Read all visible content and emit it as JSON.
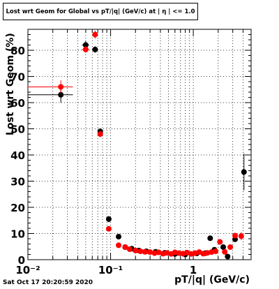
{
  "chart_data": {
    "type": "scatter",
    "title": "Lost wrt Geom for Global vs pT/|q| (GeV/c) at | η | <= 1.0",
    "xlabel": "pT/|q| (GeV/c)",
    "ylabel": "Lost wrt Geom (%)",
    "xscale": "log",
    "xlim": [
      0.01,
      5
    ],
    "ylim": [
      0,
      88
    ],
    "xticks": [
      {
        "v": 0.01,
        "label": "10⁻²"
      },
      {
        "v": 0.1,
        "label": "10⁻¹"
      },
      {
        "v": 1,
        "label": "1"
      }
    ],
    "yticks": [
      0,
      10,
      20,
      30,
      40,
      50,
      60,
      70,
      80
    ],
    "grid": true,
    "series": [
      {
        "color": "#000000",
        "points": [
          {
            "x": 0.025,
            "y": 63.0,
            "xerr": [
              0.015,
              0.01
            ],
            "yerr": 3
          },
          {
            "x": 0.05,
            "y": 82.0,
            "xerr": [
              0.005,
              0.005
            ],
            "yerr": 1.5
          },
          {
            "x": 0.065,
            "y": 80.3,
            "xerr": [
              0.005,
              0.005
            ],
            "yerr": 1.2
          },
          {
            "x": 0.075,
            "y": 49.0,
            "xerr": [
              0.003,
              0.003
            ],
            "yerr": 1.2
          },
          {
            "x": 0.095,
            "y": 15.5,
            "yerr": 1.2
          },
          {
            "x": 0.125,
            "y": 8.8,
            "yerr": 0.8
          },
          {
            "x": 0.15,
            "y": 4.8,
            "yerr": 0.6
          },
          {
            "x": 0.18,
            "y": 4.2
          },
          {
            "x": 0.22,
            "y": 3.5
          },
          {
            "x": 0.27,
            "y": 3.2
          },
          {
            "x": 0.35,
            "y": 3.0
          },
          {
            "x": 0.45,
            "y": 2.6
          },
          {
            "x": 0.6,
            "y": 2.2
          },
          {
            "x": 0.8,
            "y": 2.0
          },
          {
            "x": 1.1,
            "y": 2.4
          },
          {
            "x": 1.4,
            "y": 2.5
          },
          {
            "x": 1.6,
            "y": 8.2
          },
          {
            "x": 1.8,
            "y": 3.8
          },
          {
            "x": 2.3,
            "y": 4.8
          },
          {
            "x": 2.6,
            "y": 1.2
          },
          {
            "x": 3.2,
            "y": 7.8
          },
          {
            "x": 4.1,
            "y": 33.5,
            "yerr": 7
          }
        ]
      },
      {
        "color": "#ff0000",
        "points": [
          {
            "x": 0.025,
            "y": 66.0,
            "xerr": [
              0.015,
              0.01
            ],
            "yerr": 2.5
          },
          {
            "x": 0.05,
            "y": 80.3,
            "xerr": [
              0.005,
              0.005
            ],
            "yerr": 1.2
          },
          {
            "x": 0.065,
            "y": 86.0,
            "xerr": [
              0.005,
              0.005
            ],
            "yerr": 1.5
          },
          {
            "x": 0.075,
            "y": 48.0,
            "xerr": [
              0.003,
              0.003
            ],
            "yerr": 1.2
          },
          {
            "x": 0.095,
            "y": 11.8,
            "yerr": 1.0
          },
          {
            "x": 0.125,
            "y": 5.5,
            "yerr": 0.6
          },
          {
            "x": 0.15,
            "y": 4.8
          },
          {
            "x": 0.17,
            "y": 4.0
          },
          {
            "x": 0.2,
            "y": 3.5
          },
          {
            "x": 0.23,
            "y": 3.2
          },
          {
            "x": 0.26,
            "y": 3.0
          },
          {
            "x": 0.3,
            "y": 2.9
          },
          {
            "x": 0.34,
            "y": 2.5
          },
          {
            "x": 0.38,
            "y": 2.8
          },
          {
            "x": 0.43,
            "y": 2.3
          },
          {
            "x": 0.48,
            "y": 2.6
          },
          {
            "x": 0.54,
            "y": 2.2
          },
          {
            "x": 0.6,
            "y": 2.8
          },
          {
            "x": 0.67,
            "y": 2.5
          },
          {
            "x": 0.75,
            "y": 2.3
          },
          {
            "x": 0.84,
            "y": 2.7
          },
          {
            "x": 0.94,
            "y": 2.2
          },
          {
            "x": 1.05,
            "y": 2.5
          },
          {
            "x": 1.18,
            "y": 2.9
          },
          {
            "x": 1.32,
            "y": 2.3
          },
          {
            "x": 1.48,
            "y": 2.6
          },
          {
            "x": 1.66,
            "y": 2.9
          },
          {
            "x": 1.86,
            "y": 3.2
          },
          {
            "x": 2.1,
            "y": 6.8
          },
          {
            "x": 2.4,
            "y": 3.0
          },
          {
            "x": 2.8,
            "y": 4.8
          },
          {
            "x": 3.2,
            "y": 9.2
          },
          {
            "x": 3.8,
            "y": 9.0,
            "yerr": 1.5
          }
        ]
      }
    ]
  },
  "footer": {
    "timestamp": "Sat Oct 17 20:20:59 2020"
  }
}
